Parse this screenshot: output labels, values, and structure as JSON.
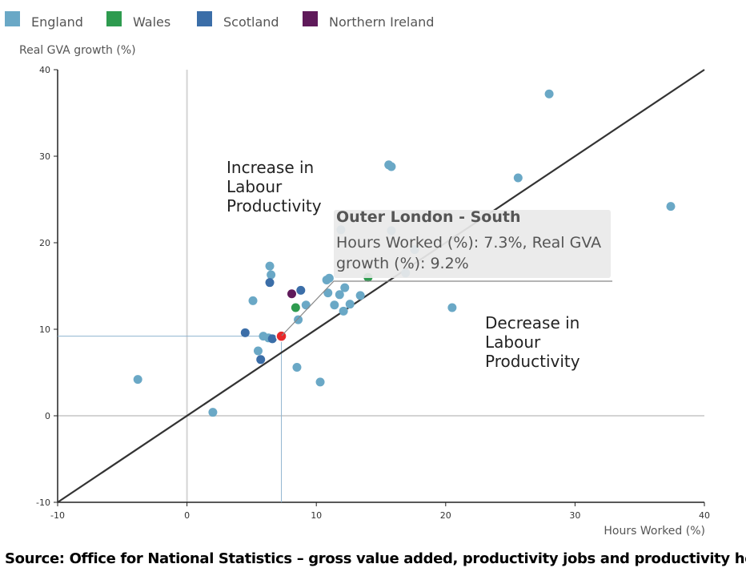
{
  "chart_data": {
    "type": "scatter",
    "xlabel": "Hours Worked (%)",
    "ylabel": "Real GVA growth (%)",
    "xlim": [
      -10,
      40
    ],
    "ylim": [
      -10,
      40
    ],
    "x_ticks": [
      -10,
      0,
      10,
      20,
      30,
      40
    ],
    "y_ticks": [
      -10,
      0,
      10,
      20,
      30,
      40
    ],
    "legend": [
      {
        "name": "England",
        "color": "#6aa8c6"
      },
      {
        "name": "Wales",
        "color": "#2e9b4f"
      },
      {
        "name": "Scotland",
        "color": "#3b6ea8"
      },
      {
        "name": "Northern Ireland",
        "color": "#5f1a5a"
      }
    ],
    "reference_line": {
      "label": "y = x",
      "x": [
        -10,
        40
      ],
      "y": [
        -10,
        40
      ]
    },
    "region_labels": {
      "upper": [
        "Increase in",
        "Labour",
        "Productivity"
      ],
      "lower": [
        "Decrease in",
        "Labour",
        "Productivity"
      ]
    },
    "series": [
      {
        "name": "England",
        "color": "#6aa8c6",
        "points": [
          {
            "x": -3.8,
            "y": 4.2
          },
          {
            "x": 2.0,
            "y": 0.4
          },
          {
            "x": 5.1,
            "y": 13.3
          },
          {
            "x": 5.9,
            "y": 9.2
          },
          {
            "x": 5.5,
            "y": 7.5
          },
          {
            "x": 6.3,
            "y": 9.0
          },
          {
            "x": 6.4,
            "y": 17.3
          },
          {
            "x": 6.5,
            "y": 16.3
          },
          {
            "x": 8.5,
            "y": 5.6
          },
          {
            "x": 8.6,
            "y": 11.1
          },
          {
            "x": 9.2,
            "y": 12.8
          },
          {
            "x": 10.3,
            "y": 3.9
          },
          {
            "x": 10.8,
            "y": 15.7
          },
          {
            "x": 11.0,
            "y": 15.9
          },
          {
            "x": 10.9,
            "y": 14.2
          },
          {
            "x": 11.4,
            "y": 12.8
          },
          {
            "x": 11.8,
            "y": 14.0
          },
          {
            "x": 12.1,
            "y": 12.1
          },
          {
            "x": 12.2,
            "y": 14.8
          },
          {
            "x": 12.6,
            "y": 12.9
          },
          {
            "x": 13.4,
            "y": 13.9
          },
          {
            "x": 11.9,
            "y": 21.5
          },
          {
            "x": 15.6,
            "y": 29.0
          },
          {
            "x": 15.8,
            "y": 28.8
          },
          {
            "x": 15.8,
            "y": 21.4
          },
          {
            "x": 17.6,
            "y": 19.2
          },
          {
            "x": 16.9,
            "y": 16.5
          },
          {
            "x": 20.5,
            "y": 12.5
          },
          {
            "x": 25.6,
            "y": 27.5
          },
          {
            "x": 28.0,
            "y": 37.2
          },
          {
            "x": 37.4,
            "y": 24.2
          }
        ]
      },
      {
        "name": "Wales",
        "color": "#2e9b4f",
        "points": [
          {
            "x": 8.4,
            "y": 12.5
          },
          {
            "x": 14.0,
            "y": 16.0
          }
        ]
      },
      {
        "name": "Scotland",
        "color": "#3b6ea8",
        "points": [
          {
            "x": 4.5,
            "y": 9.6
          },
          {
            "x": 5.7,
            "y": 6.5
          },
          {
            "x": 6.4,
            "y": 15.4
          },
          {
            "x": 6.6,
            "y": 8.9
          },
          {
            "x": 8.8,
            "y": 14.5
          }
        ]
      },
      {
        "name": "Northern Ireland",
        "color": "#5f1a5a",
        "points": [
          {
            "x": 8.1,
            "y": 14.1
          }
        ]
      }
    ],
    "highlighted_point": {
      "name": "Outer London - South",
      "x": 7.3,
      "y": 9.2,
      "color": "#e8282a"
    }
  },
  "tooltip": {
    "title": "Outer London - South",
    "line1": "Hours Worked (%): 7.3%, Real GVA",
    "line2": "growth (%): 9.2%"
  },
  "source_text": "Source: Office for National Statistics – gross value added, productivity jobs and productivity hours"
}
